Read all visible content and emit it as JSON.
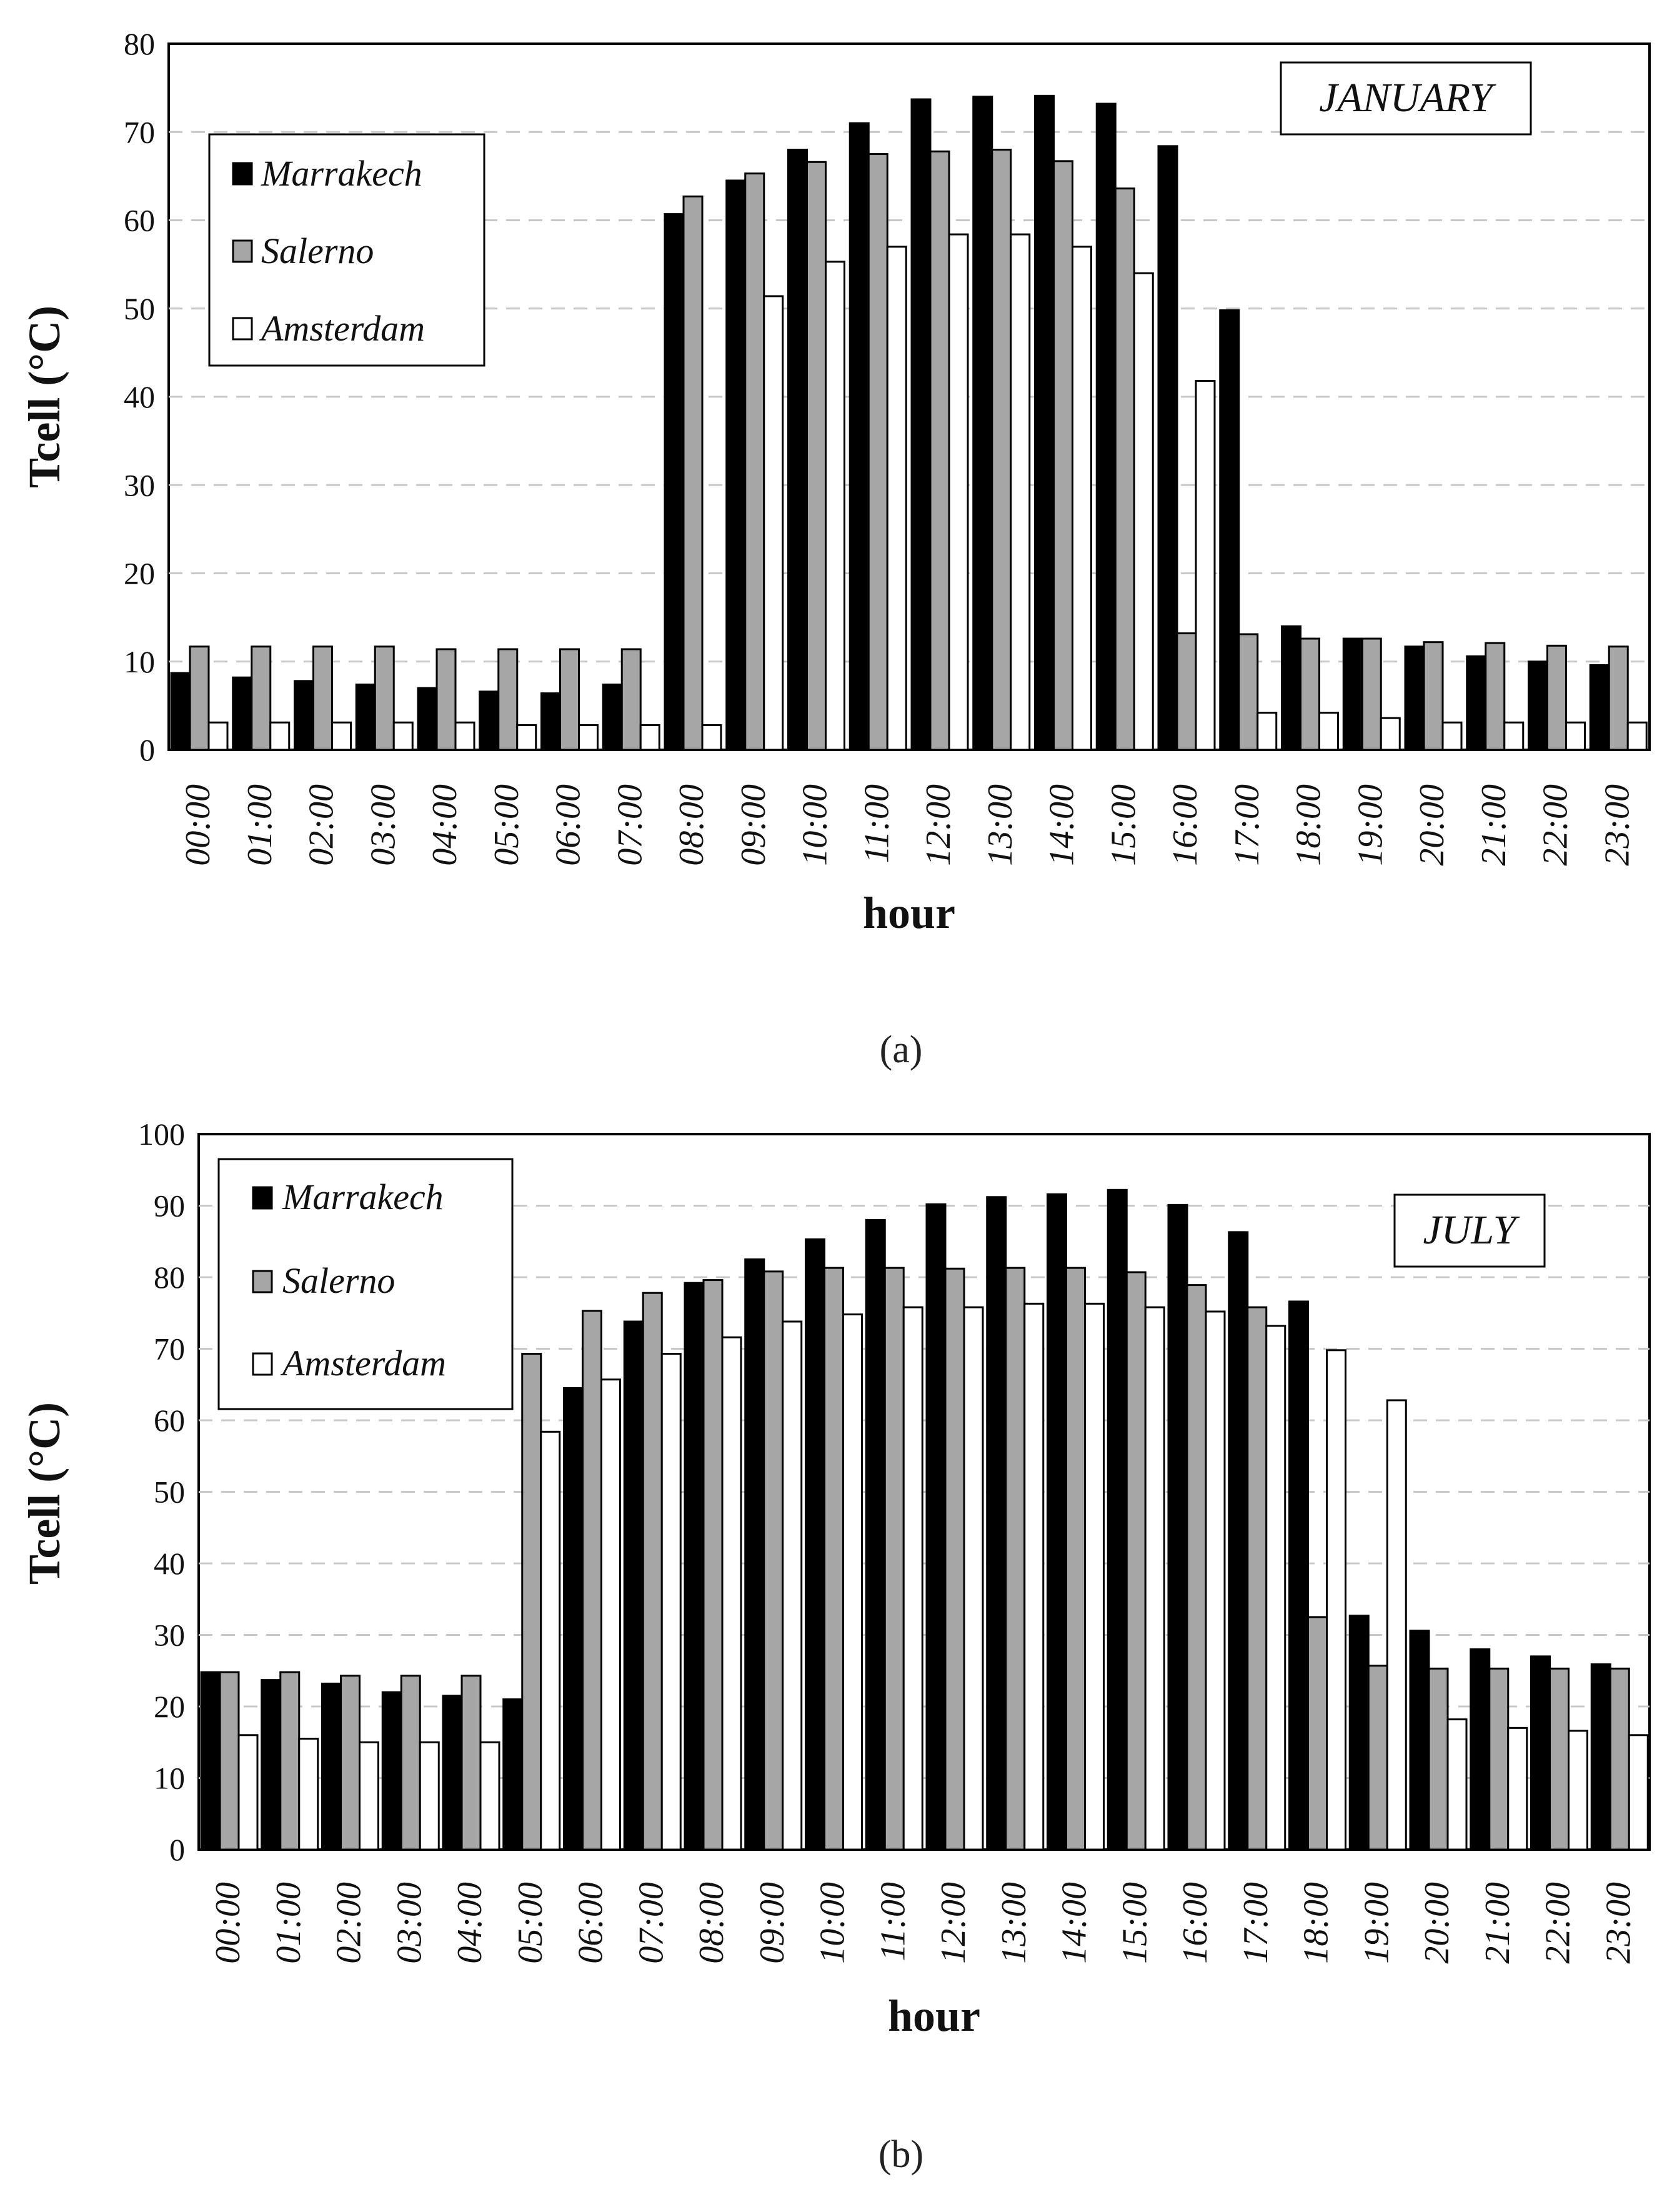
{
  "chart_data": [
    {
      "type": "bar",
      "month_label": "JANUARY",
      "caption": "(a)",
      "xlabel": "hour",
      "ylabel": "Tcell (°C)",
      "ylim": [
        0,
        80
      ],
      "yticks": [
        "0",
        "10",
        "20",
        "30",
        "40",
        "50",
        "60",
        "70",
        "80"
      ],
      "grid": true,
      "legend_position": "top-left",
      "categories": [
        "00:00",
        "01:00",
        "02:00",
        "03:00",
        "04:00",
        "05:00",
        "06:00",
        "07:00",
        "08:00",
        "09:00",
        "10:00",
        "11:00",
        "12:00",
        "13:00",
        "14:00",
        "15:00",
        "16:00",
        "17:00",
        "18:00",
        "19:00",
        "20:00",
        "21:00",
        "22:00",
        "23:00"
      ],
      "series": [
        {
          "name": "Marrakech",
          "color": "#000000",
          "values": [
            8.7,
            8.2,
            7.8,
            7.4,
            7.0,
            6.6,
            6.4,
            7.4,
            60.7,
            64.5,
            68.0,
            71.0,
            73.7,
            74.0,
            74.1,
            73.2,
            68.4,
            49.8,
            14.0,
            12.6,
            11.7,
            10.6,
            10.0,
            9.6
          ]
        },
        {
          "name": "Salerno",
          "color": "#a6a6a6",
          "values": [
            11.7,
            11.7,
            11.7,
            11.7,
            11.4,
            11.4,
            11.4,
            11.4,
            62.7,
            65.3,
            66.6,
            67.5,
            67.8,
            68.0,
            66.7,
            63.6,
            13.2,
            13.1,
            12.6,
            12.6,
            12.2,
            12.1,
            11.8,
            11.7
          ]
        },
        {
          "name": "Amsterdam",
          "color": "#ffffff",
          "values": [
            3.1,
            3.1,
            3.1,
            3.1,
            3.1,
            2.8,
            2.8,
            2.8,
            2.8,
            51.4,
            55.3,
            57.0,
            58.4,
            58.4,
            57.0,
            54.0,
            41.8,
            4.2,
            4.2,
            3.6,
            3.1,
            3.1,
            3.1,
            3.1
          ]
        }
      ]
    },
    {
      "type": "bar",
      "month_label": "JULY",
      "caption": "(b)",
      "xlabel": "hour",
      "ylabel": "Tcell (°C)",
      "ylim": [
        0,
        100
      ],
      "yticks": [
        "0",
        "10",
        "20",
        "30",
        "40",
        "50",
        "60",
        "70",
        "80",
        "90",
        "100"
      ],
      "grid": true,
      "legend_position": "top-left",
      "categories": [
        "00:00",
        "01:00",
        "02:00",
        "03:00",
        "04:00",
        "05:00",
        "06:00",
        "07:00",
        "08:00",
        "09:00",
        "10:00",
        "11:00",
        "12:00",
        "13:00",
        "14:00",
        "15:00",
        "16:00",
        "17:00",
        "18:00",
        "19:00",
        "20:00",
        "21:00",
        "22:00",
        "23:00"
      ],
      "series": [
        {
          "name": "Marrakech",
          "color": "#000000",
          "values": [
            24.8,
            23.7,
            23.2,
            22.0,
            21.5,
            21.0,
            64.5,
            73.8,
            79.2,
            82.5,
            85.3,
            88.0,
            90.2,
            91.2,
            91.6,
            92.2,
            90.1,
            86.3,
            76.6,
            32.7,
            30.6,
            28.0,
            27.0,
            25.9
          ]
        },
        {
          "name": "Salerno",
          "color": "#a6a6a6",
          "values": [
            24.8,
            24.8,
            24.3,
            24.3,
            24.3,
            69.3,
            75.3,
            77.8,
            79.6,
            80.8,
            81.3,
            81.3,
            81.2,
            81.3,
            81.3,
            80.7,
            78.9,
            75.8,
            32.5,
            25.7,
            25.3,
            25.3,
            25.3,
            25.3
          ]
        },
        {
          "name": "Amsterdam",
          "color": "#ffffff",
          "values": [
            16.0,
            15.5,
            15.0,
            15.0,
            15.0,
            58.4,
            65.7,
            69.3,
            71.6,
            73.8,
            74.8,
            75.8,
            75.8,
            76.3,
            76.3,
            75.8,
            75.2,
            73.2,
            69.8,
            62.8,
            18.2,
            17.0,
            16.6,
            16.0
          ]
        }
      ]
    }
  ]
}
